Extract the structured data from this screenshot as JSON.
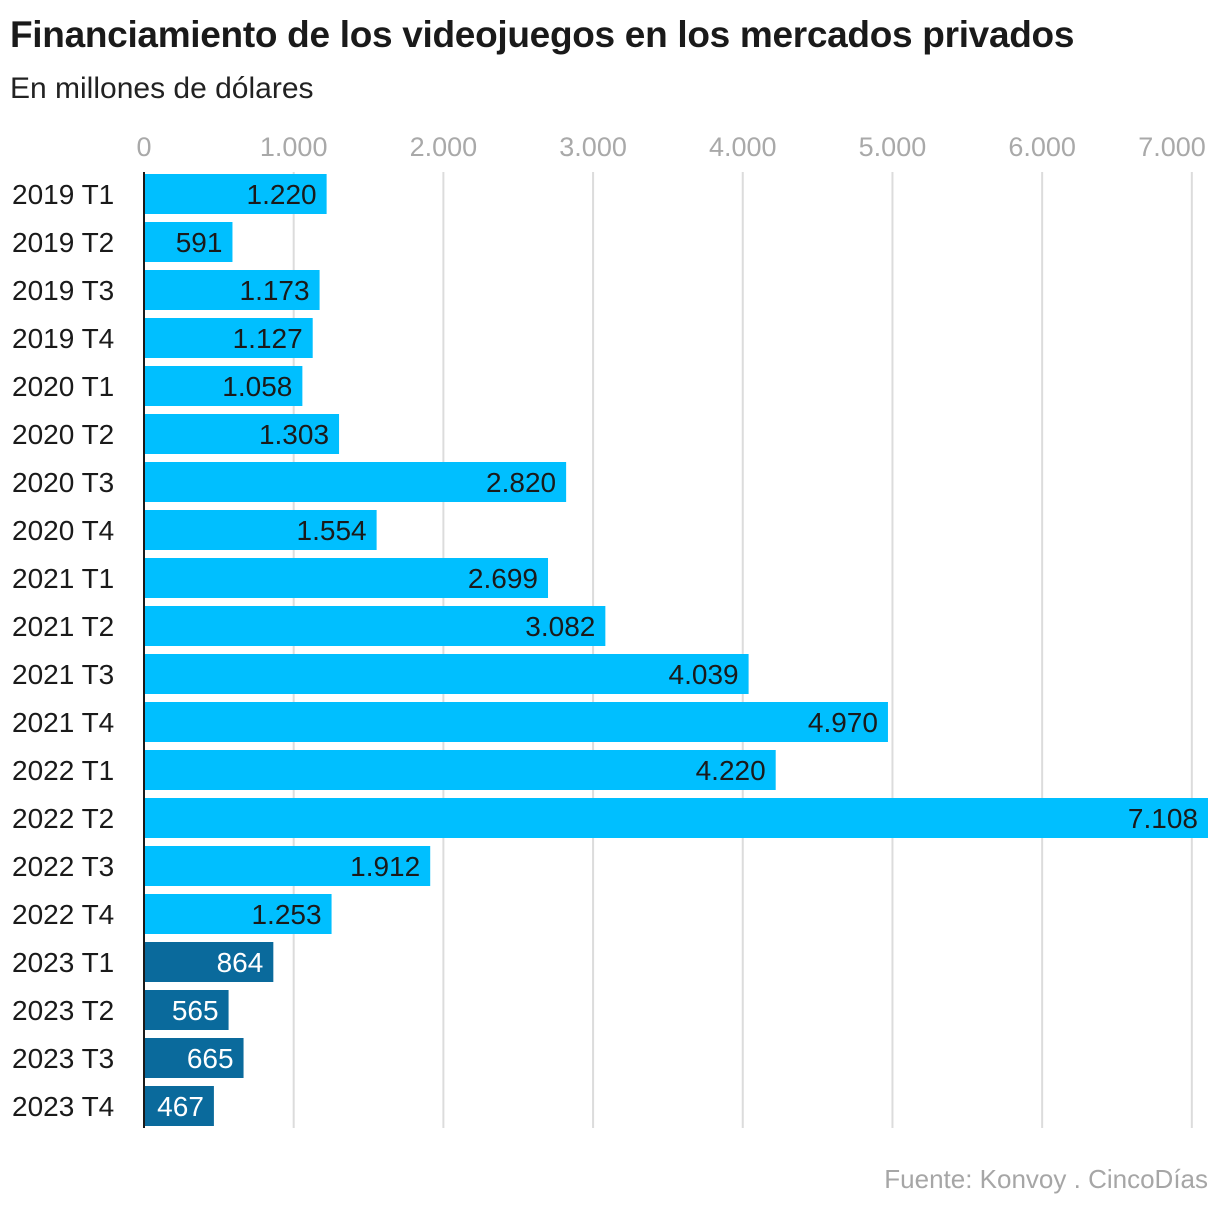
{
  "title": "Financiamiento de los videojuegos en los mercados privados",
  "subtitle": "En millones de dólares",
  "source": "Fuente: Konvoy . CincoDías",
  "colors": {
    "bar": "#00bfff",
    "bar_highlight": "#0a6a9c",
    "grid": "#dcdcdc",
    "label_dark": "#1a1a1a",
    "label_light": "#ffffff",
    "axis": "#1a1a1a"
  },
  "chart_data": {
    "type": "bar",
    "orientation": "horizontal",
    "categories": [
      "2019 T1",
      "2019 T2",
      "2019 T3",
      "2019 T4",
      "2020 T1",
      "2020 T2",
      "2020 T3",
      "2020 T4",
      "2021 T1",
      "2021 T2",
      "2021 T3",
      "2021 T4",
      "2022 T1",
      "2022 T2",
      "2022 T3",
      "2022 T4",
      "2023 T1",
      "2023 T2",
      "2023 T3",
      "2023 T4"
    ],
    "values": [
      1220,
      591,
      1173,
      1127,
      1058,
      1303,
      2820,
      1554,
      2699,
      3082,
      4039,
      4970,
      4220,
      7108,
      1912,
      1253,
      864,
      565,
      665,
      467
    ],
    "value_labels": [
      "1.220",
      "591",
      "1.173",
      "1.127",
      "1.058",
      "1.303",
      "2.820",
      "1.554",
      "2.699",
      "3.082",
      "4.039",
      "4.970",
      "4.220",
      "7.108",
      "1.912",
      "1.253",
      "864",
      "565",
      "665",
      "467"
    ],
    "highlighted": [
      "2023 T1",
      "2023 T2",
      "2023 T3",
      "2023 T4"
    ],
    "xticks": [
      0,
      1000,
      2000,
      3000,
      4000,
      5000,
      6000,
      7000
    ],
    "xtick_labels": [
      "0",
      "1.000",
      "2.000",
      "3.000",
      "4.000",
      "5.000",
      "6.000",
      "7.000"
    ],
    "xlim": [
      0,
      7108
    ],
    "grid": true,
    "legend": "none"
  }
}
